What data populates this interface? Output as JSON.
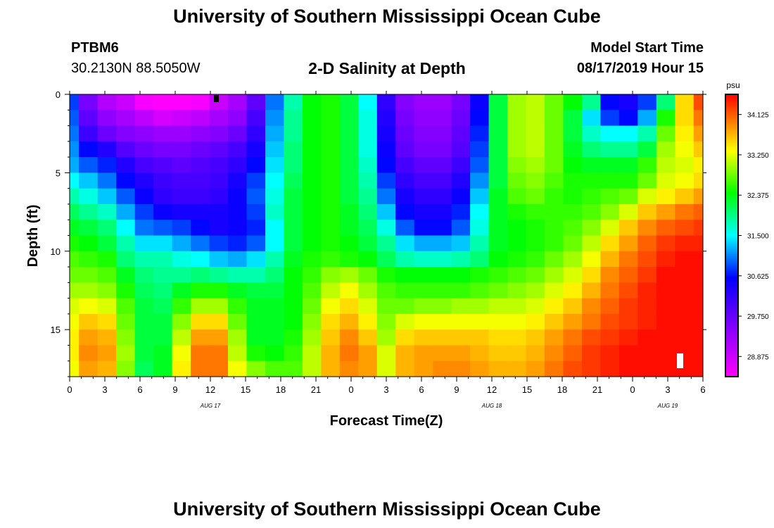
{
  "header": {
    "title": "University of Southern Mississippi Ocean Cube",
    "station_id": "PTBM6",
    "coordinates": "30.2130N 88.5050W",
    "subtitle": "2-D Salinity at Depth",
    "model_start_label": "Model Start Time",
    "model_start_value": "08/17/2019 Hour 15"
  },
  "footer": {
    "title": "University of Southern Mississippi Ocean Cube"
  },
  "chart_data": {
    "type": "heatmap",
    "title": "2-D Salinity at Depth",
    "xlabel": "Forecast Time(Z)",
    "ylabel": "Depth (ft)",
    "x_tick_labels": [
      "0",
      "3",
      "6",
      "9",
      "12",
      "15",
      "18",
      "21",
      "0",
      "3",
      "6",
      "9",
      "12",
      "15",
      "18",
      "21",
      "0",
      "3",
      "6"
    ],
    "x_range_hours": [
      0,
      54
    ],
    "date_labels": [
      {
        "label": "AUG 17",
        "hour": 12
      },
      {
        "label": "AUG 18",
        "hour": 36
      },
      {
        "label": "AUG 19",
        "hour": 51
      }
    ],
    "y_ticks": [
      0,
      5,
      10,
      15
    ],
    "y_range_ft": [
      0,
      18
    ],
    "colorbar": {
      "unit": "psu",
      "min": 28.4375,
      "max": 34.5625,
      "tick_labels": [
        "34.125",
        "33.250",
        "32.375",
        "31.500",
        "30.625",
        "29.750",
        "28.875"
      ],
      "tick_values": [
        34.125,
        33.25,
        32.375,
        31.5,
        30.625,
        29.75,
        28.875
      ]
    },
    "grid_rows": [
      {
        "d": 0.5,
        "v": [
          30.8,
          29.6,
          29.1,
          28.9,
          28.5,
          28.4,
          28.4,
          28.5,
          28.9,
          29.2,
          29.8,
          31.0,
          31.8,
          32.4,
          32.5,
          32.2,
          31.5,
          30.2,
          29.5,
          29.3,
          29.3,
          29.6,
          30.5,
          32.2,
          33.0,
          33.1,
          32.8,
          32.4,
          31.9,
          30.6,
          30.4,
          30.8,
          32.0,
          33.5,
          34.2
        ]
      },
      {
        "d": 1.5,
        "v": [
          30.9,
          29.8,
          29.4,
          29.2,
          29.0,
          28.8,
          28.9,
          29.0,
          29.2,
          29.4,
          30.0,
          31.1,
          31.9,
          32.4,
          32.5,
          32.2,
          31.6,
          30.3,
          29.6,
          29.4,
          29.4,
          29.7,
          30.6,
          32.2,
          33.0,
          33.1,
          32.8,
          32.2,
          31.4,
          30.8,
          30.6,
          31.2,
          32.5,
          33.5,
          34.0
        ]
      },
      {
        "d": 2.5,
        "v": [
          31.0,
          30.1,
          29.7,
          29.5,
          29.4,
          29.3,
          29.3,
          29.4,
          29.5,
          29.7,
          30.2,
          31.2,
          31.9,
          32.4,
          32.5,
          32.2,
          31.6,
          30.4,
          29.7,
          29.5,
          29.5,
          29.8,
          30.7,
          32.2,
          33.0,
          33.1,
          32.8,
          32.2,
          31.7,
          31.5,
          31.5,
          31.8,
          32.8,
          33.4,
          33.8
        ]
      },
      {
        "d": 3.5,
        "v": [
          31.1,
          30.6,
          30.3,
          29.9,
          29.7,
          29.6,
          29.6,
          29.7,
          29.8,
          30.0,
          30.4,
          31.3,
          32.0,
          32.4,
          32.5,
          32.2,
          31.6,
          30.5,
          29.8,
          29.6,
          29.6,
          29.9,
          30.8,
          32.2,
          33.0,
          33.1,
          32.8,
          32.3,
          32.0,
          31.9,
          31.9,
          32.2,
          33.0,
          33.3,
          33.6
        ]
      },
      {
        "d": 4.5,
        "v": [
          31.2,
          30.9,
          30.7,
          30.3,
          30.0,
          29.9,
          29.8,
          29.9,
          30.0,
          30.2,
          30.6,
          31.4,
          32.0,
          32.4,
          32.5,
          32.2,
          31.7,
          30.6,
          30.0,
          29.8,
          29.8,
          30.1,
          30.9,
          32.2,
          32.9,
          33.0,
          32.8,
          32.4,
          32.3,
          32.3,
          32.3,
          32.6,
          33.1,
          33.2,
          33.4
        ]
      },
      {
        "d": 5.5,
        "v": [
          31.5,
          31.3,
          31.0,
          30.6,
          30.3,
          30.1,
          30.0,
          30.0,
          30.1,
          30.4,
          30.8,
          31.5,
          32.1,
          32.4,
          32.5,
          32.2,
          31.8,
          30.8,
          30.2,
          30.0,
          30.0,
          30.3,
          31.1,
          32.2,
          32.8,
          32.9,
          32.7,
          32.5,
          32.5,
          32.5,
          32.5,
          32.8,
          33.2,
          33.3,
          33.5
        ]
      },
      {
        "d": 6.5,
        "v": [
          31.8,
          31.6,
          31.3,
          30.9,
          30.5,
          30.2,
          30.1,
          30.1,
          30.2,
          30.5,
          30.9,
          31.6,
          32.2,
          32.4,
          32.5,
          32.2,
          31.9,
          31.0,
          30.4,
          30.2,
          30.2,
          30.5,
          31.3,
          32.3,
          32.7,
          32.8,
          32.6,
          32.5,
          32.6,
          32.7,
          32.8,
          33.2,
          33.4,
          33.6,
          33.8
        ]
      },
      {
        "d": 7.5,
        "v": [
          32.1,
          31.9,
          31.7,
          31.2,
          30.8,
          30.5,
          30.4,
          30.4,
          30.4,
          30.5,
          30.8,
          31.7,
          32.2,
          32.4,
          32.5,
          32.3,
          32.0,
          31.3,
          30.6,
          30.4,
          30.4,
          30.7,
          31.5,
          32.3,
          32.5,
          32.6,
          32.6,
          32.6,
          32.7,
          32.9,
          33.2,
          33.6,
          33.8,
          34.0,
          34.1
        ]
      },
      {
        "d": 8.5,
        "v": [
          32.3,
          32.2,
          32.0,
          31.5,
          31.0,
          30.9,
          30.8,
          30.6,
          30.4,
          30.5,
          30.7,
          31.5,
          32.2,
          32.4,
          32.5,
          32.3,
          32.1,
          31.6,
          30.9,
          30.6,
          30.6,
          30.9,
          31.6,
          32.3,
          32.4,
          32.5,
          32.6,
          32.7,
          32.9,
          33.2,
          33.6,
          33.9,
          34.1,
          34.2,
          34.3
        ]
      },
      {
        "d": 9.5,
        "v": [
          32.5,
          32.4,
          32.2,
          31.8,
          31.4,
          31.4,
          31.2,
          31.0,
          30.8,
          30.7,
          30.9,
          31.5,
          32.2,
          32.4,
          32.5,
          32.4,
          32.2,
          31.9,
          31.4,
          31.2,
          31.2,
          31.3,
          31.8,
          32.3,
          32.4,
          32.5,
          32.6,
          32.8,
          33.1,
          33.5,
          33.8,
          34.1,
          34.3,
          34.4,
          34.4
        ]
      },
      {
        "d": 10.5,
        "v": [
          32.7,
          32.6,
          32.5,
          32.0,
          31.8,
          31.8,
          31.6,
          31.5,
          31.3,
          31.2,
          31.4,
          31.8,
          32.3,
          32.5,
          32.6,
          32.5,
          32.4,
          32.1,
          31.8,
          31.7,
          31.7,
          31.8,
          32.0,
          32.4,
          32.5,
          32.6,
          32.8,
          33.0,
          33.3,
          33.7,
          34.0,
          34.2,
          34.4,
          34.5,
          34.5
        ]
      },
      {
        "d": 11.5,
        "v": [
          32.8,
          32.8,
          32.7,
          32.3,
          32.0,
          31.9,
          31.9,
          32.0,
          31.9,
          31.8,
          31.8,
          32.0,
          32.4,
          32.6,
          32.9,
          33.0,
          32.8,
          32.5,
          32.4,
          32.4,
          32.4,
          32.4,
          32.5,
          32.6,
          32.7,
          32.8,
          33.0,
          33.2,
          33.5,
          33.9,
          34.1,
          34.3,
          34.5,
          34.5,
          34.5
        ]
      },
      {
        "d": 12.5,
        "v": [
          33.0,
          33.0,
          32.9,
          32.5,
          32.1,
          32.0,
          32.3,
          32.5,
          32.5,
          32.3,
          32.2,
          32.2,
          32.4,
          32.7,
          33.1,
          33.3,
          33.0,
          32.7,
          32.6,
          32.6,
          32.6,
          32.6,
          32.7,
          32.8,
          32.9,
          33.0,
          33.2,
          33.4,
          33.7,
          34.0,
          34.2,
          34.4,
          34.5,
          34.5,
          34.5
        ]
      },
      {
        "d": 13.5,
        "v": [
          33.2,
          33.3,
          33.2,
          32.7,
          32.2,
          32.1,
          32.6,
          33.0,
          33.0,
          32.6,
          32.3,
          32.3,
          32.4,
          32.8,
          33.3,
          33.5,
          33.2,
          32.8,
          32.8,
          32.9,
          32.9,
          33.0,
          33.0,
          33.1,
          33.1,
          33.2,
          33.4,
          33.6,
          33.9,
          34.1,
          34.3,
          34.4,
          34.5,
          34.5,
          34.5
        ]
      },
      {
        "d": 14.5,
        "v": [
          33.3,
          33.6,
          33.5,
          32.8,
          32.2,
          32.2,
          32.9,
          33.5,
          33.5,
          32.8,
          32.3,
          32.3,
          32.4,
          32.9,
          33.5,
          33.7,
          33.4,
          32.9,
          33.2,
          33.3,
          33.3,
          33.3,
          33.3,
          33.3,
          33.3,
          33.4,
          33.6,
          33.8,
          34.0,
          34.2,
          34.3,
          34.4,
          34.5,
          34.5,
          34.5
        ]
      },
      {
        "d": 15.5,
        "v": [
          33.4,
          33.8,
          33.7,
          32.9,
          32.2,
          32.2,
          33.1,
          33.8,
          33.8,
          33.0,
          32.3,
          32.3,
          32.5,
          33.0,
          33.6,
          33.9,
          33.6,
          33.0,
          33.5,
          33.6,
          33.6,
          33.6,
          33.6,
          33.5,
          33.5,
          33.6,
          33.8,
          34.0,
          34.2,
          34.3,
          34.4,
          34.5,
          34.5,
          34.5,
          34.5
        ]
      },
      {
        "d": 16.5,
        "v": [
          33.4,
          33.9,
          33.8,
          33.0,
          32.2,
          32.3,
          33.3,
          34.0,
          34.0,
          33.1,
          32.5,
          32.4,
          32.6,
          33.1,
          33.7,
          34.0,
          33.8,
          33.2,
          33.7,
          33.8,
          33.8,
          33.8,
          33.7,
          33.6,
          33.6,
          33.7,
          33.9,
          34.1,
          34.3,
          34.4,
          34.5,
          34.5,
          34.5,
          34.5,
          34.5
        ]
      },
      {
        "d": 17.5,
        "v": [
          33.3,
          33.8,
          33.7,
          32.9,
          32.1,
          32.3,
          33.4,
          34.0,
          34.0,
          33.3,
          32.9,
          32.7,
          32.7,
          33.1,
          33.7,
          33.9,
          33.8,
          33.2,
          33.7,
          33.8,
          33.9,
          33.9,
          33.8,
          33.7,
          33.7,
          33.8,
          34.0,
          34.2,
          34.3,
          34.4,
          34.5,
          34.5,
          34.5,
          34.5,
          34.5
        ]
      }
    ]
  }
}
